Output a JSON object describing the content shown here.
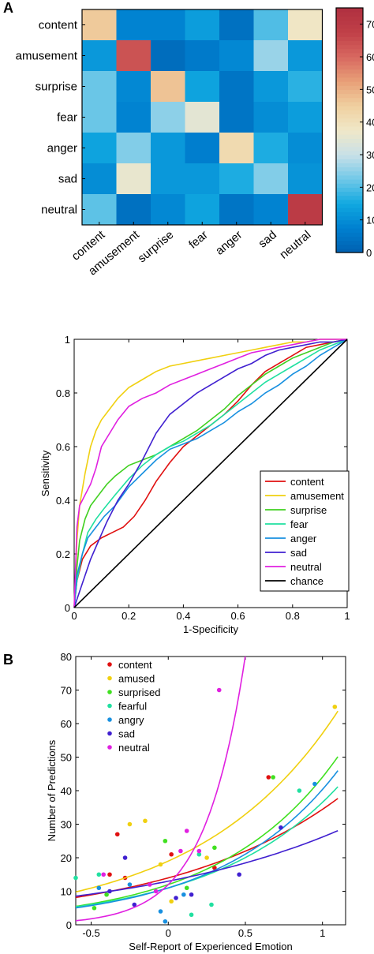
{
  "panel_labels": {
    "a": "A",
    "b": "B"
  },
  "chart_data": [
    {
      "type": "heatmap",
      "rows": [
        "content",
        "amusement",
        "surprise",
        "fear",
        "anger",
        "sad",
        "neutral"
      ],
      "cols": [
        "content",
        "amusement",
        "surprise",
        "fear",
        "anger",
        "sad",
        "neutral"
      ],
      "values": [
        [
          46,
          8,
          8,
          13,
          4,
          20,
          38
        ],
        [
          12,
          64,
          3,
          6,
          9,
          26,
          12
        ],
        [
          22,
          9,
          47,
          14,
          5,
          12,
          17
        ],
        [
          22,
          8,
          25,
          35,
          5,
          10,
          13
        ],
        [
          14,
          24,
          12,
          7,
          42,
          16,
          10
        ],
        [
          10,
          36,
          12,
          12,
          16,
          24,
          11
        ],
        [
          21,
          4,
          9,
          14,
          5,
          8,
          70
        ]
      ],
      "colorbar": {
        "min": 0,
        "max": 75,
        "ticks": [
          0,
          10,
          20,
          30,
          40,
          50,
          60,
          70
        ]
      }
    },
    {
      "type": "line",
      "xlabel": "1-Specificity",
      "ylabel": "Sensitivity",
      "xlim": [
        0,
        1
      ],
      "ylim": [
        0,
        1
      ],
      "xticks": [
        0,
        0.2,
        0.4,
        0.6,
        0.8,
        1
      ],
      "yticks": [
        0,
        0.2,
        0.4,
        0.6,
        0.8,
        1
      ],
      "legend_position": "lower-right",
      "series": [
        {
          "name": "content",
          "color": "#e01010",
          "x": [
            0,
            0.01,
            0.03,
            0.06,
            0.1,
            0.14,
            0.18,
            0.22,
            0.26,
            0.3,
            0.35,
            0.4,
            0.45,
            0.5,
            0.55,
            0.6,
            0.65,
            0.7,
            0.75,
            0.8,
            0.85,
            0.9,
            0.95,
            1
          ],
          "y": [
            0,
            0.1,
            0.18,
            0.23,
            0.26,
            0.28,
            0.3,
            0.34,
            0.4,
            0.47,
            0.54,
            0.6,
            0.64,
            0.68,
            0.72,
            0.77,
            0.83,
            0.88,
            0.91,
            0.94,
            0.97,
            0.98,
            0.99,
            1
          ]
        },
        {
          "name": "amusement",
          "color": "#f0d010",
          "x": [
            0,
            0.01,
            0.02,
            0.04,
            0.06,
            0.08,
            0.1,
            0.13,
            0.16,
            0.2,
            0.25,
            0.3,
            0.35,
            0.4,
            0.45,
            0.5,
            0.55,
            0.6,
            0.65,
            0.7,
            0.75,
            0.8,
            0.85,
            0.9,
            0.95,
            1
          ],
          "y": [
            0,
            0.25,
            0.38,
            0.5,
            0.6,
            0.66,
            0.7,
            0.74,
            0.78,
            0.82,
            0.85,
            0.88,
            0.9,
            0.91,
            0.92,
            0.93,
            0.94,
            0.95,
            0.96,
            0.97,
            0.98,
            0.99,
            0.99,
            1,
            1,
            1
          ]
        },
        {
          "name": "surprise",
          "color": "#40d020",
          "x": [
            0,
            0.01,
            0.02,
            0.04,
            0.06,
            0.09,
            0.12,
            0.15,
            0.2,
            0.25,
            0.3,
            0.35,
            0.4,
            0.45,
            0.5,
            0.55,
            0.6,
            0.65,
            0.7,
            0.75,
            0.8,
            0.85,
            0.9,
            0.95,
            1
          ],
          "y": [
            0,
            0.15,
            0.25,
            0.33,
            0.38,
            0.42,
            0.46,
            0.49,
            0.53,
            0.55,
            0.57,
            0.6,
            0.63,
            0.66,
            0.7,
            0.74,
            0.79,
            0.83,
            0.87,
            0.9,
            0.93,
            0.95,
            0.97,
            0.99,
            1
          ]
        },
        {
          "name": "fear",
          "color": "#20e0a0",
          "x": [
            0,
            0.01,
            0.03,
            0.05,
            0.08,
            0.11,
            0.15,
            0.2,
            0.25,
            0.3,
            0.35,
            0.4,
            0.45,
            0.5,
            0.55,
            0.6,
            0.65,
            0.7,
            0.75,
            0.8,
            0.85,
            0.9,
            0.95,
            1
          ],
          "y": [
            0,
            0.1,
            0.2,
            0.28,
            0.33,
            0.37,
            0.42,
            0.48,
            0.53,
            0.57,
            0.6,
            0.62,
            0.65,
            0.68,
            0.72,
            0.76,
            0.8,
            0.84,
            0.87,
            0.9,
            0.93,
            0.96,
            0.98,
            1
          ]
        },
        {
          "name": "anger",
          "color": "#1890e0",
          "x": [
            0,
            0.01,
            0.03,
            0.05,
            0.08,
            0.11,
            0.15,
            0.2,
            0.25,
            0.3,
            0.35,
            0.4,
            0.45,
            0.5,
            0.55,
            0.6,
            0.65,
            0.7,
            0.75,
            0.8,
            0.85,
            0.9,
            0.95,
            1
          ],
          "y": [
            0,
            0.12,
            0.2,
            0.26,
            0.3,
            0.34,
            0.38,
            0.45,
            0.5,
            0.55,
            0.59,
            0.61,
            0.63,
            0.66,
            0.69,
            0.73,
            0.76,
            0.8,
            0.83,
            0.87,
            0.9,
            0.94,
            0.97,
            1
          ]
        },
        {
          "name": "sad",
          "color": "#4020d0",
          "x": [
            0,
            0.02,
            0.04,
            0.06,
            0.09,
            0.12,
            0.16,
            0.2,
            0.25,
            0.3,
            0.35,
            0.4,
            0.45,
            0.5,
            0.55,
            0.6,
            0.65,
            0.7,
            0.75,
            0.8,
            0.85,
            0.9,
            0.95,
            1
          ],
          "y": [
            0,
            0.06,
            0.12,
            0.18,
            0.25,
            0.32,
            0.4,
            0.46,
            0.55,
            0.65,
            0.72,
            0.76,
            0.8,
            0.83,
            0.86,
            0.89,
            0.91,
            0.94,
            0.96,
            0.97,
            0.98,
            0.99,
            0.99,
            1
          ]
        },
        {
          "name": "neutral",
          "color": "#e020e0",
          "x": [
            0,
            0.01,
            0.02,
            0.04,
            0.06,
            0.08,
            0.1,
            0.13,
            0.16,
            0.2,
            0.25,
            0.3,
            0.35,
            0.4,
            0.45,
            0.5,
            0.55,
            0.6,
            0.65,
            0.7,
            0.75,
            0.8,
            0.85,
            0.9,
            0.95,
            1
          ],
          "y": [
            0,
            0.3,
            0.38,
            0.42,
            0.46,
            0.52,
            0.6,
            0.65,
            0.7,
            0.75,
            0.78,
            0.8,
            0.83,
            0.85,
            0.87,
            0.89,
            0.91,
            0.93,
            0.95,
            0.96,
            0.97,
            0.98,
            0.99,
            1,
            1,
            1
          ]
        },
        {
          "name": "chance",
          "color": "#000000",
          "x": [
            0,
            1
          ],
          "y": [
            0,
            1
          ]
        }
      ]
    },
    {
      "type": "scatter",
      "xlabel": "Self-Report of Experienced Emotion",
      "ylabel": "Number of Predictions",
      "xlim": [
        -0.6,
        1.15
      ],
      "ylim": [
        0,
        80
      ],
      "xticks": [
        -0.5,
        0,
        0.5,
        1
      ],
      "yticks": [
        0,
        10,
        20,
        30,
        40,
        50,
        60,
        70,
        80
      ],
      "legend_position": "top-left",
      "series": [
        {
          "name": "content",
          "color": "#e01010",
          "points": [
            [
              -0.38,
              15
            ],
            [
              -0.33,
              27
            ],
            [
              -0.28,
              14
            ],
            [
              0.02,
              21
            ],
            [
              0.3,
              17
            ],
            [
              0.65,
              44
            ]
          ],
          "fit": [
            14,
            0.9
          ]
        },
        {
          "name": "amused",
          "color": "#f0d010",
          "points": [
            [
              -0.25,
              30
            ],
            [
              -0.15,
              31
            ],
            [
              -0.05,
              18
            ],
            [
              0.02,
              7
            ],
            [
              0.25,
              20
            ],
            [
              1.08,
              65
            ]
          ],
          "fit": [
            19,
            1.1
          ]
        },
        {
          "name": "surprised",
          "color": "#40e020",
          "points": [
            [
              -0.48,
              5
            ],
            [
              -0.4,
              9
            ],
            [
              -0.02,
              25
            ],
            [
              0.12,
              11
            ],
            [
              0.3,
              23
            ],
            [
              0.68,
              44
            ]
          ],
          "fit": [
            12,
            1.3
          ]
        },
        {
          "name": "fearful",
          "color": "#20e0a0",
          "points": [
            [
              -0.6,
              14
            ],
            [
              -0.45,
              15
            ],
            [
              0.15,
              3
            ],
            [
              0.2,
              21
            ],
            [
              0.28,
              6
            ],
            [
              0.85,
              40
            ]
          ],
          "fit": [
            11,
            1.2
          ]
        },
        {
          "name": "angry",
          "color": "#1890e0",
          "points": [
            [
              -0.45,
              11
            ],
            [
              -0.25,
              12
            ],
            [
              -0.05,
              4
            ],
            [
              -0.02,
              1
            ],
            [
              0.1,
              9
            ],
            [
              0.95,
              42
            ]
          ],
          "fit": [
            11,
            1.3
          ]
        },
        {
          "name": "sad",
          "color": "#4020d0",
          "points": [
            [
              -0.38,
              10
            ],
            [
              -0.28,
              20
            ],
            [
              -0.22,
              6
            ],
            [
              0.05,
              8
            ],
            [
              0.15,
              9
            ],
            [
              0.46,
              15
            ],
            [
              0.73,
              29
            ]
          ],
          "fit": [
            13,
            0.7
          ]
        },
        {
          "name": "neutral",
          "color": "#e020e0",
          "points": [
            [
              -0.42,
              15
            ],
            [
              -0.12,
              12
            ],
            [
              -0.08,
              10
            ],
            [
              0.08,
              22
            ],
            [
              0.12,
              28
            ],
            [
              0.33,
              70
            ],
            [
              0.2,
              22
            ]
          ],
          "fit": [
            12,
            3.8
          ]
        }
      ]
    }
  ]
}
